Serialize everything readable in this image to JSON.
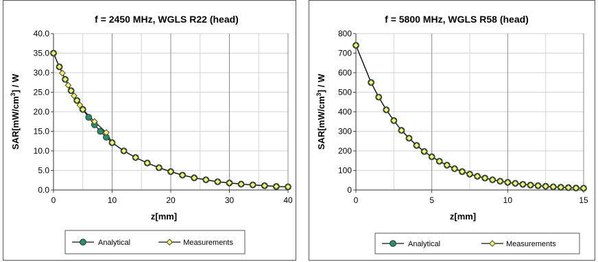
{
  "chart_data": [
    {
      "type": "line",
      "title": "f = 2450 MHz, WGLS R22 (head)",
      "xlabel": "z[mm]",
      "ylabel_main": "SAR[mW/cm",
      "ylabel_sup": "3",
      "ylabel_end": "] / W",
      "xlim": [
        0,
        40
      ],
      "ylim": [
        0,
        40
      ],
      "xticks": [
        "0",
        "10",
        "20",
        "30",
        "40"
      ],
      "yticks": [
        "0.0",
        "5.0",
        "10.0",
        "15.0",
        "20.0",
        "25.0",
        "30.0",
        "35.0",
        "40.0"
      ],
      "grid": true,
      "legend_position": "bottom",
      "series": [
        {
          "name": "Analytical",
          "color": "#2e8b6e",
          "x": [
            0,
            1,
            2,
            3,
            4,
            5,
            6,
            7,
            8,
            9,
            10,
            12,
            14,
            16,
            18,
            20,
            22,
            24,
            26,
            28,
            30,
            32,
            34,
            36,
            38,
            40
          ],
          "y": [
            35.0,
            31.5,
            28.3,
            25.4,
            22.9,
            20.6,
            18.6,
            16.7,
            15.0,
            13.5,
            12.1,
            10.0,
            8.3,
            6.9,
            5.7,
            4.7,
            3.8,
            3.1,
            2.6,
            2.1,
            1.8,
            1.5,
            1.3,
            1.1,
            0.9,
            0.8
          ]
        },
        {
          "name": "Measurements",
          "color": "#f0f07a",
          "x": [
            0,
            1,
            1.5,
            2,
            2.5,
            3,
            3.5,
            4,
            4.5,
            5,
            7,
            9,
            10,
            12,
            14,
            16,
            18,
            20,
            22,
            24,
            26,
            28,
            30,
            32,
            34,
            36,
            38,
            40
          ],
          "y": [
            35.0,
            31.5,
            29.9,
            28.3,
            26.8,
            25.4,
            24.1,
            22.9,
            21.7,
            20.6,
            17.5,
            14.7,
            12.1,
            10.0,
            8.3,
            6.9,
            5.7,
            4.7,
            3.8,
            3.1,
            2.6,
            2.1,
            1.8,
            1.5,
            1.3,
            1.1,
            0.9,
            0.8
          ]
        }
      ]
    },
    {
      "type": "line",
      "title": "f = 5800 MHz, WGLS R58 (head)",
      "xlabel": "z[mm]",
      "ylabel_main": "SAR[mW/cm",
      "ylabel_sup": "3",
      "ylabel_end": "] / W",
      "xlim": [
        0,
        15
      ],
      "ylim": [
        0,
        800
      ],
      "xticks": [
        "0",
        "5",
        "10",
        "15"
      ],
      "yticks": [
        "0",
        "100",
        "200",
        "300",
        "400",
        "500",
        "600",
        "700",
        "800"
      ],
      "grid": true,
      "legend_position": "bottom",
      "series": [
        {
          "name": "Analytical",
          "color": "#2e8b6e",
          "x": [
            0,
            1,
            1.5,
            2,
            2.5,
            3,
            3.5,
            4,
            4.5,
            5,
            5.5,
            6,
            6.5,
            7,
            7.5,
            8,
            8.5,
            9,
            9.5,
            10,
            10.5,
            11,
            11.5,
            12,
            12.5,
            13,
            13.5,
            14,
            14.5,
            15
          ],
          "y": [
            740,
            550,
            475,
            410,
            355,
            305,
            265,
            228,
            197,
            170,
            147,
            127,
            109,
            94,
            81,
            70,
            61,
            52,
            45,
            39,
            34,
            29,
            25,
            22,
            19,
            16,
            14,
            12,
            10,
            9
          ]
        },
        {
          "name": "Measurements",
          "color": "#f0f07a",
          "x": [
            0,
            1,
            1.5,
            2,
            2.5,
            3,
            3.5,
            4,
            4.5,
            5,
            5.5,
            6,
            6.5,
            7,
            7.5,
            8,
            8.5,
            9,
            9.5,
            10,
            10.5,
            11,
            11.5,
            12,
            12.5,
            13,
            13.5,
            14,
            14.5,
            15
          ],
          "y": [
            740,
            550,
            475,
            410,
            355,
            305,
            265,
            228,
            197,
            170,
            147,
            127,
            109,
            94,
            81,
            70,
            61,
            52,
            45,
            39,
            34,
            29,
            25,
            22,
            19,
            16,
            14,
            12,
            10,
            9
          ]
        }
      ]
    }
  ]
}
